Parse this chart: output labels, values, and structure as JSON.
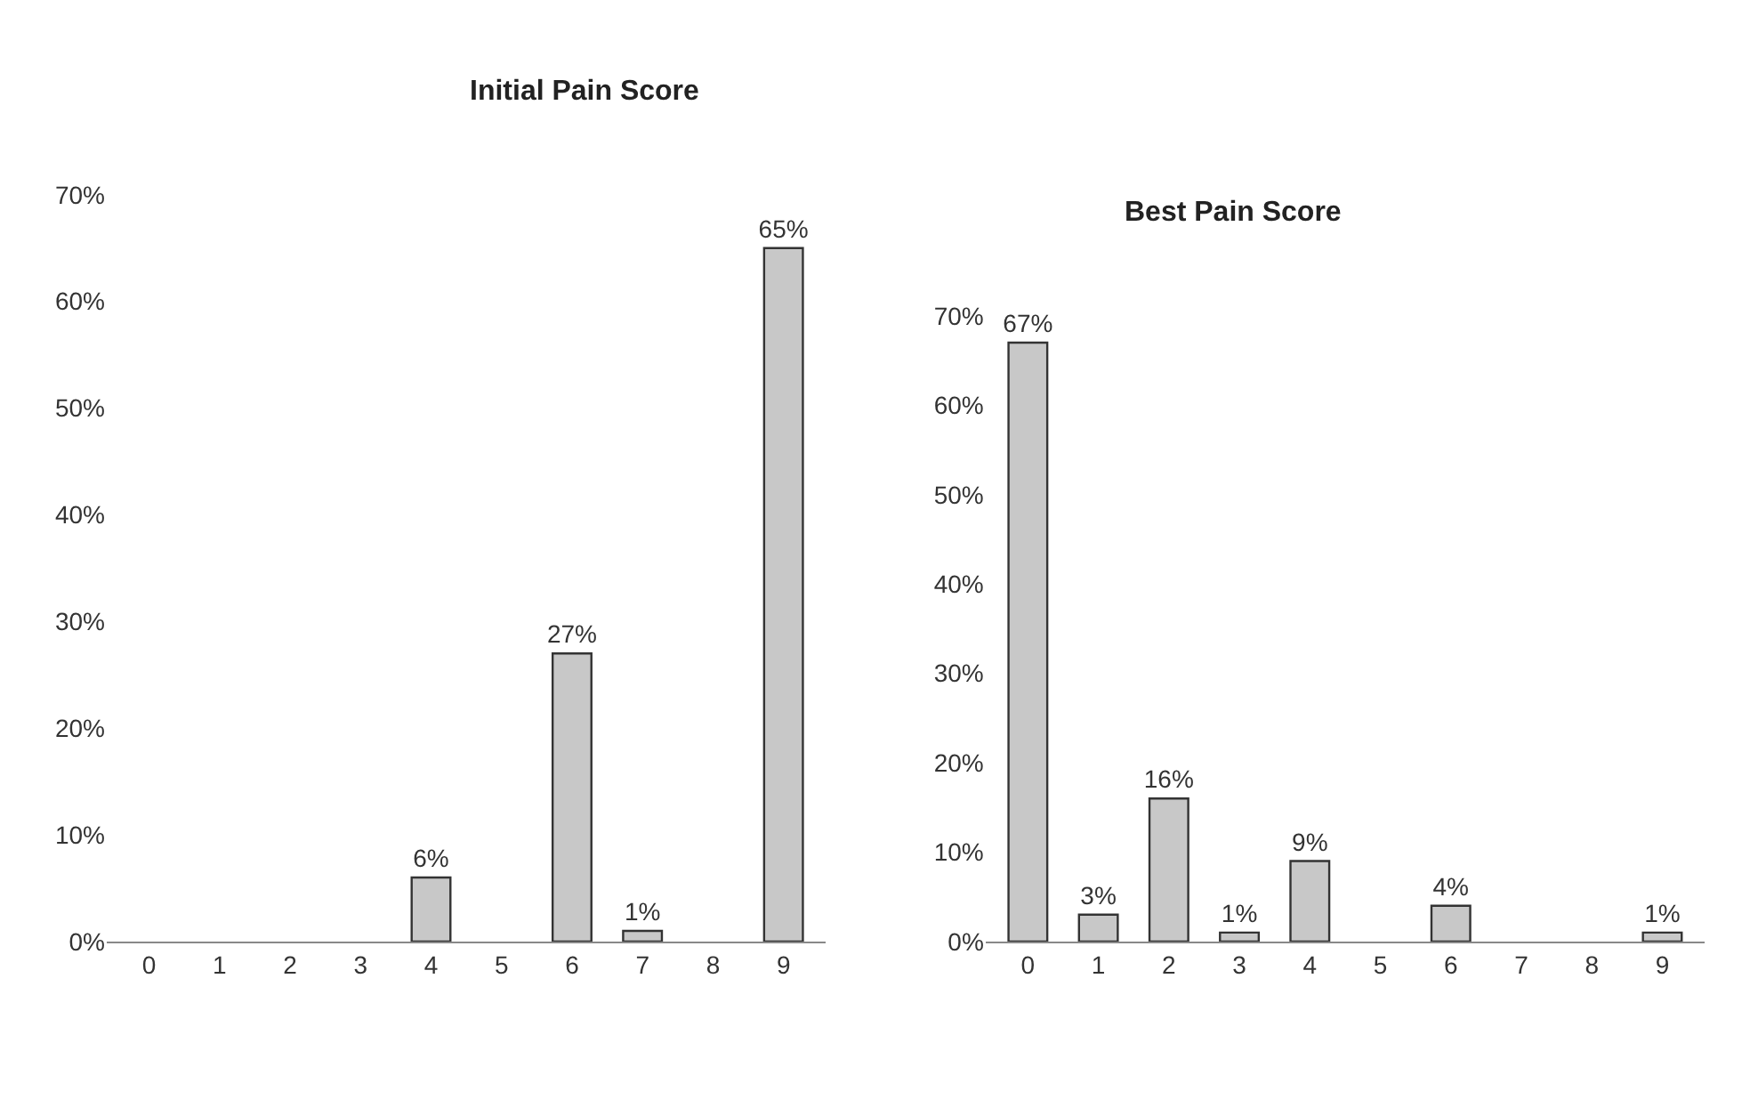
{
  "chart_data": [
    {
      "type": "bar",
      "title": "Initial Pain Score",
      "categories": [
        "0",
        "1",
        "2",
        "3",
        "4",
        "5",
        "6",
        "7",
        "8",
        "9"
      ],
      "values": [
        0,
        0,
        0,
        0,
        6,
        0,
        27,
        1,
        0,
        65
      ],
      "value_labels": [
        null,
        null,
        null,
        null,
        "6%",
        null,
        "27%",
        "1%",
        null,
        "65%"
      ],
      "color": "#c8c8c8",
      "ylim": [
        0,
        70
      ],
      "yticks": [
        {
          "value": 0,
          "label": "0%"
        },
        {
          "value": 10,
          "label": "10%"
        },
        {
          "value": 20,
          "label": "20%"
        },
        {
          "value": 30,
          "label": "30%"
        },
        {
          "value": 40,
          "label": "40%"
        },
        {
          "value": 50,
          "label": "50%"
        },
        {
          "value": 60,
          "label": "60%"
        },
        {
          "value": 70,
          "label": "70%"
        }
      ]
    },
    {
      "type": "bar",
      "title": "Best Pain Score",
      "categories": [
        "0",
        "1",
        "2",
        "3",
        "4",
        "5",
        "6",
        "7",
        "8",
        "9"
      ],
      "values": [
        67,
        3,
        16,
        1,
        9,
        0,
        4,
        0,
        0,
        1
      ],
      "value_labels": [
        "67%",
        "3%",
        "16%",
        "1%",
        "9%",
        null,
        "4%",
        null,
        null,
        "1%"
      ],
      "color": "#c8c8c8",
      "ylim": [
        0,
        70
      ],
      "yticks": [
        {
          "value": 0,
          "label": "0%"
        },
        {
          "value": 10,
          "label": "10%"
        },
        {
          "value": 20,
          "label": "20%"
        },
        {
          "value": 30,
          "label": "30%"
        },
        {
          "value": 40,
          "label": "40%"
        },
        {
          "value": 50,
          "label": "50%"
        },
        {
          "value": 60,
          "label": "60%"
        },
        {
          "value": 70,
          "label": "70%"
        }
      ]
    }
  ]
}
